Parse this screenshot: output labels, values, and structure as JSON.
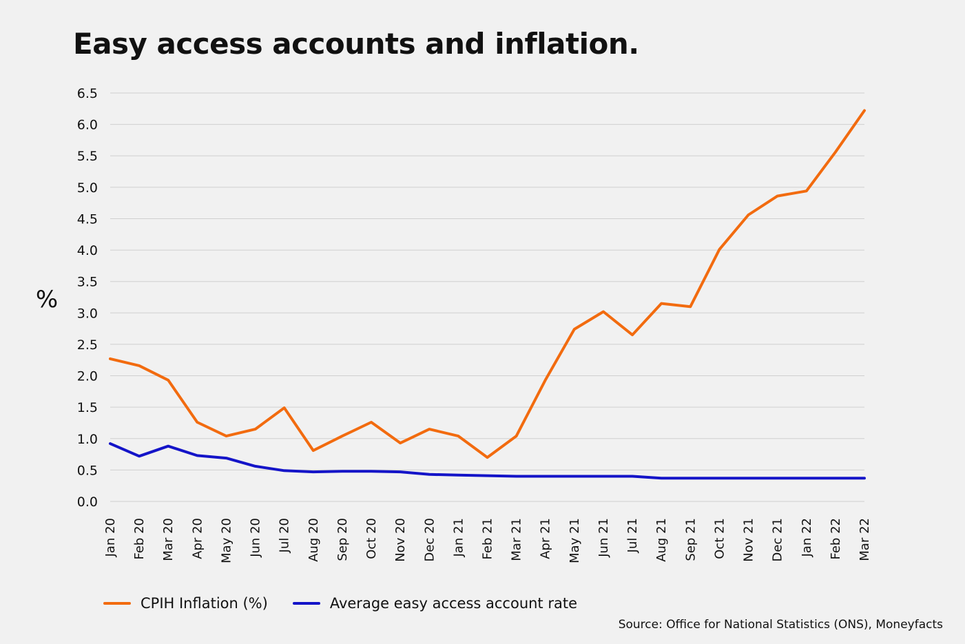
{
  "colors": {
    "background": "#f1f1f1",
    "grid": "#cfcfcf",
    "cpih": "#f26b0f",
    "savings": "#1414c8",
    "text": "#111111"
  },
  "chart_data": {
    "type": "line",
    "title": "Easy access accounts and inflation.",
    "ylabel": "%",
    "xlabel": "",
    "ylim": [
      0,
      6.5
    ],
    "yticks": [
      "0.0",
      "0.5",
      "1.0",
      "1.5",
      "2.0",
      "2.5",
      "3.0",
      "3.5",
      "4.0",
      "4.5",
      "5.0",
      "5.5",
      "6.0",
      "6.5"
    ],
    "grid": true,
    "legend_position": "bottom-left",
    "categories": [
      "Jan 20",
      "Feb 20",
      "Mar 20",
      "Apr 20",
      "May 20",
      "Jun 20",
      "Jul 20",
      "Aug 20",
      "Sep 20",
      "Oct 20",
      "Nov 20",
      "Dec 20",
      "Jan 21",
      "Feb 21",
      "Mar 21",
      "Apr 21",
      "May 21",
      "Jun 21",
      "Jul 21",
      "Aug 21",
      "Sep 21",
      "Oct 21",
      "Nov 21",
      "Dec 21",
      "Jan 22",
      "Feb 22",
      "Mar 22"
    ],
    "series": [
      {
        "name": "CPIH Inflation (%)",
        "color": "#f26b0f",
        "values": [
          2.27,
          2.16,
          1.93,
          1.26,
          1.04,
          1.15,
          1.49,
          0.81,
          1.04,
          1.26,
          0.93,
          1.15,
          1.04,
          0.7,
          1.04,
          1.93,
          2.74,
          3.02,
          2.65,
          3.15,
          3.1,
          4.01,
          4.56,
          4.86,
          4.94,
          5.56,
          6.22
        ]
      },
      {
        "name": "Average easy access account rate",
        "color": "#1414c8",
        "values": [
          0.92,
          0.72,
          0.88,
          0.73,
          0.69,
          0.56,
          0.49,
          0.47,
          0.48,
          0.48,
          0.47,
          0.43,
          0.42,
          0.41,
          0.4,
          0.4,
          0.4,
          0.4,
          0.4,
          0.37,
          0.37,
          0.37,
          0.37,
          0.37,
          0.37,
          0.37,
          0.37
        ]
      }
    ]
  },
  "source": "Source: Office for National Statistics (ONS), Moneyfacts"
}
